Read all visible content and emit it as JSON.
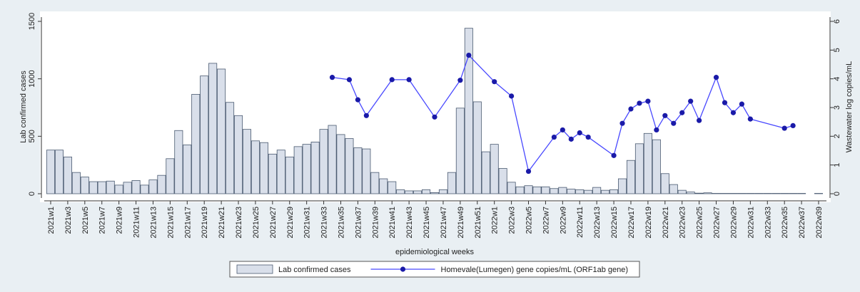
{
  "chart_data": {
    "type": "bar",
    "xlabel": "epidemiological weeks",
    "ylabel": "Lab confirmed cases",
    "y2label": "Wastewater log copies/mL",
    "categories": [
      "2021w1",
      null,
      "2021w3",
      null,
      "2021w5",
      null,
      "2021w7",
      null,
      "2021w9",
      null,
      "2021w11",
      null,
      "2021w13",
      null,
      "2021w15",
      null,
      "2021w17",
      null,
      "2021w19",
      null,
      "2021w21",
      null,
      "2021w23",
      null,
      "2021w25",
      null,
      "2021w27",
      null,
      "2021w29",
      null,
      "2021w31",
      null,
      "2021w33",
      null,
      "2021w35",
      null,
      "2021w37",
      null,
      "2021w39",
      null,
      "2021w41",
      null,
      "2021w43",
      null,
      "2021w45",
      null,
      "2021w47",
      null,
      "2021w49",
      null,
      "2021w51",
      null,
      "2022w1",
      null,
      "2022w3",
      null,
      "2022w5",
      null,
      "2022w7",
      null,
      "2022w9",
      null,
      "2022w11",
      null,
      "2022w13",
      null,
      "2022w15",
      null,
      "2022w17",
      null,
      "2022w19",
      null,
      "2022w21",
      null,
      "2022w23",
      null,
      "2022w25",
      null,
      "2022w27",
      null,
      "2022w29",
      null,
      "2022w31",
      null,
      "2022w33",
      null,
      "2022w35",
      null,
      "2022w37",
      null,
      "2022w39"
    ],
    "series": [
      {
        "name": "Lab confirmed cases",
        "type": "bar",
        "color": "#d9dfea",
        "edge": "#4a5a70",
        "values": [
          380,
          380,
          320,
          185,
          145,
          105,
          105,
          110,
          75,
          100,
          115,
          75,
          120,
          160,
          305,
          550,
          425,
          865,
          1025,
          1135,
          1085,
          795,
          680,
          560,
          460,
          445,
          345,
          380,
          320,
          410,
          430,
          450,
          560,
          595,
          515,
          480,
          400,
          390,
          185,
          130,
          105,
          35,
          25,
          25,
          35,
          10,
          35,
          185,
          745,
          1440,
          800,
          365,
          430,
          220,
          100,
          60,
          70,
          60,
          60,
          45,
          55,
          40,
          35,
          30,
          55,
          30,
          35,
          130,
          290,
          435,
          525,
          470,
          175,
          80,
          30,
          15,
          5,
          8,
          3,
          3,
          3,
          3,
          3,
          3,
          3,
          3,
          3,
          3,
          3,
          0,
          3
        ]
      },
      {
        "name": "Homevale(Lumegen) gene copies/mL (ORF1ab gene)",
        "type": "line",
        "axis": "y2",
        "color": "#4848ff",
        "marker_color": "#1a1aa8",
        "values": [
          null,
          null,
          null,
          null,
          null,
          null,
          null,
          null,
          null,
          null,
          null,
          null,
          null,
          null,
          null,
          null,
          null,
          null,
          null,
          null,
          null,
          null,
          null,
          null,
          null,
          null,
          null,
          null,
          null,
          null,
          null,
          null,
          null,
          4.05,
          null,
          3.97,
          3.27,
          2.72,
          null,
          null,
          3.97,
          null,
          3.97,
          null,
          null,
          2.67,
          null,
          null,
          3.95,
          4.82,
          null,
          null,
          3.9,
          null,
          3.4,
          null,
          0.78,
          null,
          null,
          1.97,
          2.22,
          1.9,
          2.12,
          1.97,
          null,
          null,
          1.33,
          2.45,
          2.95,
          3.15,
          3.22,
          2.22,
          2.72,
          2.45,
          2.82,
          3.22,
          2.55,
          null,
          4.05,
          3.17,
          2.82,
          3.12,
          2.6,
          null,
          null,
          null,
          2.28,
          2.37,
          null,
          null,
          null
        ]
      }
    ],
    "ylim": [
      0,
      1500
    ],
    "yticks": [
      0,
      500,
      1000,
      1500
    ],
    "y2lim": [
      0,
      6
    ],
    "y2ticks": [
      0,
      1,
      2,
      3,
      4,
      5,
      6
    ],
    "grid": false,
    "legend": "bottom"
  }
}
